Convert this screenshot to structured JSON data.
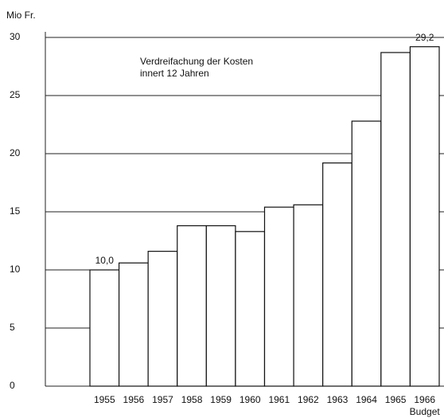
{
  "chart_data": {
    "type": "bar",
    "ylabel": "Mio Fr.",
    "annotation": [
      "Verdreifachung der Kosten",
      "innert 12 Jahren"
    ],
    "categories": [
      "1955",
      "1956",
      "1957",
      "1958",
      "1959",
      "1960",
      "1961",
      "1962",
      "1963",
      "1964",
      "1965",
      "1966"
    ],
    "category_notes": [
      null,
      null,
      null,
      null,
      null,
      null,
      null,
      null,
      null,
      null,
      null,
      "Budget"
    ],
    "values": [
      10.0,
      10.6,
      11.6,
      13.8,
      13.8,
      13.3,
      15.4,
      15.6,
      19.2,
      22.8,
      28.7,
      29.2
    ],
    "value_labels": [
      "10,0",
      null,
      null,
      null,
      null,
      null,
      null,
      null,
      null,
      null,
      null,
      "29,2"
    ],
    "color": "#ffffff",
    "ylim": [
      0,
      30
    ],
    "yticks": [
      0,
      5,
      10,
      15,
      20,
      25,
      30
    ],
    "grid": true
  }
}
